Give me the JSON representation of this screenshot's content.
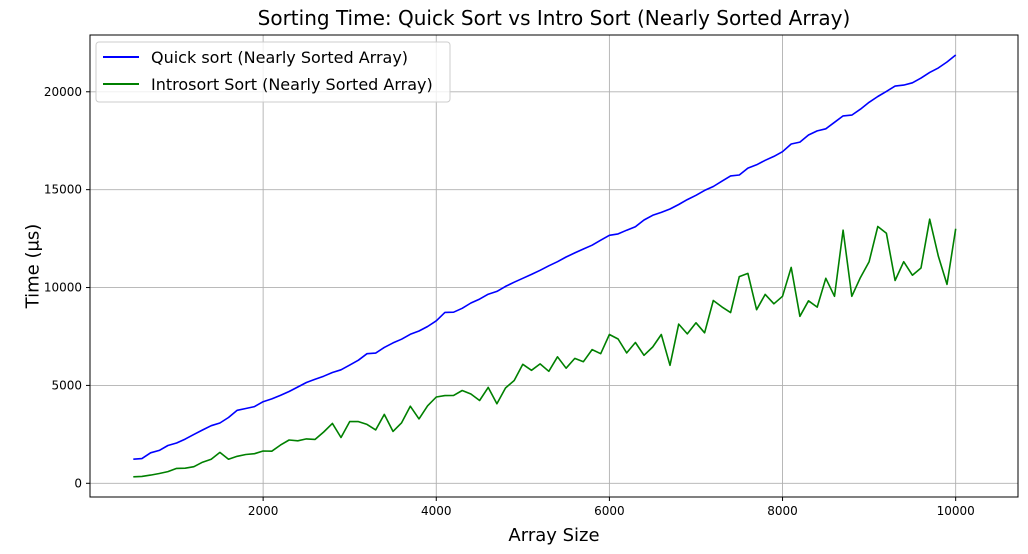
{
  "chart_data": {
    "type": "line",
    "title": "Sorting Time: Quick Sort vs Intro Sort (Nearly Sorted Array)",
    "xlabel": "Array Size",
    "ylabel": "Time (µs)",
    "xlim": [
      0,
      10720
    ],
    "ylim": [
      -700,
      22900
    ],
    "xticks": [
      2000,
      4000,
      6000,
      8000,
      10000
    ],
    "yticks": [
      0,
      5000,
      10000,
      15000,
      20000
    ],
    "grid": true,
    "legend_position": "top-left",
    "x": [
      500,
      600,
      700,
      800,
      900,
      1000,
      1100,
      1200,
      1300,
      1400,
      1500,
      1600,
      1700,
      1800,
      1900,
      2000,
      2100,
      2200,
      2300,
      2400,
      2500,
      2600,
      2700,
      2800,
      2900,
      3000,
      3100,
      3200,
      3300,
      3400,
      3500,
      3600,
      3700,
      3800,
      3900,
      4000,
      4100,
      4200,
      4300,
      4400,
      4500,
      4600,
      4700,
      4800,
      4900,
      5000,
      5100,
      5200,
      5300,
      5400,
      5500,
      5600,
      5700,
      5800,
      5900,
      6000,
      6100,
      6200,
      6300,
      6400,
      6500,
      6600,
      6700,
      6800,
      6900,
      7000,
      7100,
      7200,
      7300,
      7400,
      7500,
      7600,
      7700,
      7800,
      7900,
      8000,
      8100,
      8200,
      8300,
      8400,
      8500,
      8600,
      8700,
      8800,
      8900,
      9000,
      9100,
      9200,
      9300,
      9400,
      9500,
      9600,
      9700,
      9800,
      9900,
      10000
    ],
    "series": [
      {
        "name": "Quick sort (Nearly Sorted Array)",
        "color": "#0000ff",
        "values": [
          1230,
          1260,
          1560,
          1680,
          1930,
          2060,
          2260,
          2500,
          2720,
          2940,
          3080,
          3360,
          3730,
          3820,
          3920,
          4170,
          4310,
          4490,
          4690,
          4920,
          5150,
          5320,
          5470,
          5660,
          5800,
          6040,
          6290,
          6620,
          6650,
          6940,
          7170,
          7360,
          7610,
          7780,
          8010,
          8300,
          8730,
          8740,
          8940,
          9210,
          9410,
          9660,
          9800,
          10060,
          10270,
          10470,
          10670,
          10880,
          11110,
          11320,
          11560,
          11770,
          11970,
          12160,
          12420,
          12670,
          12740,
          12930,
          13110,
          13450,
          13690,
          13840,
          14010,
          14240,
          14490,
          14710,
          14960,
          15160,
          15430,
          15700,
          15750,
          16100,
          16270,
          16500,
          16700,
          16940,
          17330,
          17430,
          17790,
          18000,
          18110,
          18440,
          18770,
          18810,
          19110,
          19460,
          19760,
          20020,
          20290,
          20340,
          20460,
          20700,
          20990,
          21220,
          21520,
          21880
        ]
      },
      {
        "name": "Introsort Sort (Nearly Sorted Array)",
        "color": "#008000",
        "values": [
          330,
          350,
          420,
          500,
          600,
          760,
          770,
          850,
          1080,
          1230,
          1580,
          1230,
          1380,
          1470,
          1510,
          1650,
          1640,
          1950,
          2210,
          2170,
          2270,
          2240,
          2620,
          3060,
          2340,
          3150,
          3150,
          3010,
          2730,
          3520,
          2650,
          3090,
          3940,
          3290,
          3960,
          4410,
          4480,
          4490,
          4740,
          4560,
          4230,
          4900,
          4060,
          4870,
          5250,
          6080,
          5770,
          6100,
          5720,
          6460,
          5880,
          6380,
          6210,
          6830,
          6620,
          7600,
          7370,
          6660,
          7190,
          6540,
          6960,
          7600,
          6030,
          8130,
          7630,
          8200,
          7690,
          9340,
          9010,
          8720,
          10560,
          10720,
          8870,
          9650,
          9170,
          9550,
          11030,
          8530,
          9320,
          9000,
          10470,
          9550,
          12930,
          9550,
          10510,
          11320,
          13120,
          12770,
          10360,
          11320,
          10630,
          11000,
          13490,
          11590,
          10160,
          13000
        ]
      }
    ]
  }
}
